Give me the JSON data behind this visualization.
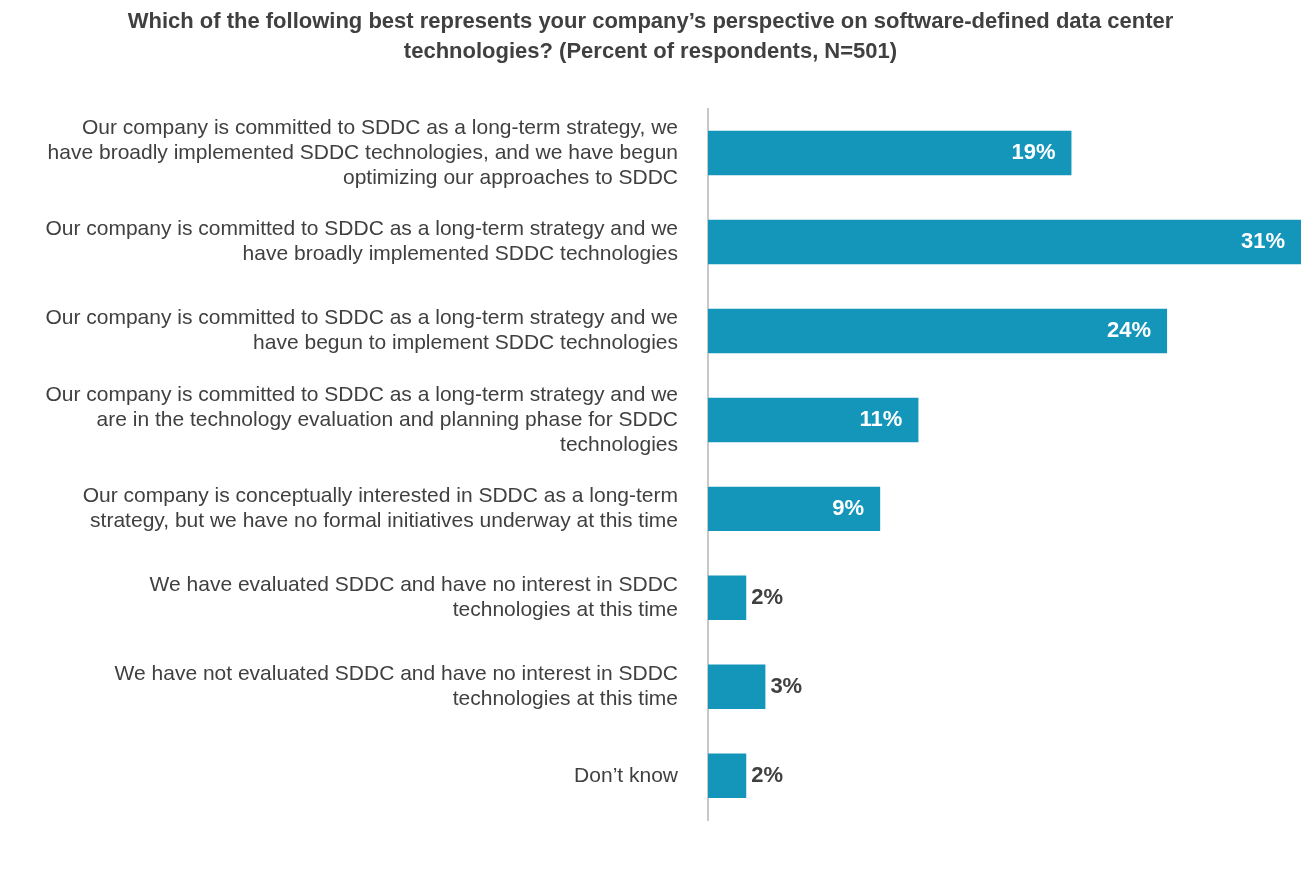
{
  "chart_data": {
    "type": "bar",
    "orientation": "horizontal",
    "title": "Which of the following best represents your company’s perspective on software-defined data center technologies? (Percent of respondents, N=501)",
    "categories": [
      "Our company is committed to SDDC as a long-term strategy, we have broadly implemented SDDC technologies, and we have begun optimizing our approaches to SDDC",
      "Our company is committed to SDDC as a long-term strategy and we have broadly implemented SDDC technologies",
      "Our company is committed to SDDC as a long-term strategy and we have begun to implement SDDC technologies",
      "Our company is committed to SDDC as a long-term strategy and we are in the technology evaluation and planning phase for SDDC technologies",
      "Our company is conceptually interested in SDDC as a long-term strategy, but we have no formal initiatives underway at this time",
      "We have evaluated SDDC and have no interest in SDDC technologies at this time",
      "We have not evaluated SDDC and have no interest in SDDC technologies at this time",
      "Don’t know"
    ],
    "values": [
      19,
      31,
      24,
      11,
      9,
      2,
      3,
      2
    ],
    "value_labels": [
      "19%",
      "31%",
      "24%",
      "11%",
      "9%",
      "2%",
      "3%",
      "2%"
    ],
    "color": "#1496bb",
    "tick_labels": "y"
  }
}
